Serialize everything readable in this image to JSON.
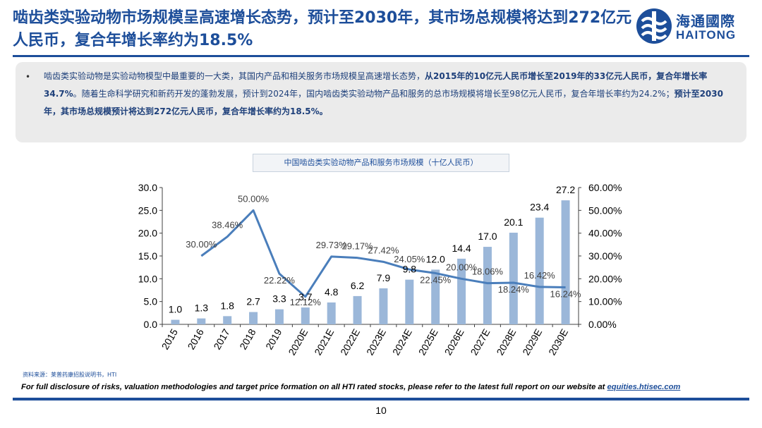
{
  "header": {
    "title": "啮齿类实验动物市场规模呈高速增长态势，预计至2030年，其市场总规模将达到272亿元人民币，复合年增长率约为18.5%",
    "logo_cn": "海通國際",
    "logo_en": "HAITONG"
  },
  "summary": {
    "bullet": "•",
    "seg1": "啮齿类实验动物是实验动物模型中最重要的一大类，其国内产品和相关服务市场规模呈高速增长态势，",
    "seg2": "从2015年的10亿元人民币增长至2019年的33亿元人民币，复合年增长率34.7%",
    "seg3": "。随着生命科学研究和新药开发的蓬勃发展，预计到2024年，国内啮齿类实验动物产品和服务的总市场规模将增长至98亿元人民币，复合年增长率约为24.2%；",
    "seg4": "预计至2030年，其市场总规模预计将达到272亿元人民币，复合年增长率约为18.5%。"
  },
  "chart_caption": "中国啮齿类实验动物产品和服务市场规模（十亿人民币）",
  "chart_data": {
    "type": "bar",
    "categories": [
      "2015",
      "2016",
      "2017",
      "2018",
      "2019",
      "2020E",
      "2021E",
      "2022E",
      "2023E",
      "2024E",
      "2025E",
      "2026E",
      "2027E",
      "2028E",
      "2029E",
      "2030E"
    ],
    "series": [
      {
        "type": "bar",
        "values": [
          1.0,
          1.3,
          1.8,
          2.7,
          3.3,
          3.7,
          4.8,
          6.2,
          7.9,
          9.8,
          12.0,
          14.4,
          17.0,
          20.1,
          23.4,
          27.2
        ],
        "labels": [
          "1.0",
          "1.3",
          "1.8",
          "2.7",
          "3.3",
          "3.7",
          "4.8",
          "6.2",
          "7.9",
          "9.8",
          "12.0",
          "14.4",
          "17.0",
          "20.1",
          "23.4",
          "27.2"
        ],
        "color": "#9bb7d9"
      },
      {
        "type": "line",
        "axis": "right",
        "values": [
          null,
          30.0,
          38.46,
          50.0,
          22.22,
          12.12,
          29.73,
          29.17,
          27.42,
          24.05,
          22.45,
          20.0,
          18.06,
          18.24,
          16.42,
          16.24
        ],
        "labels": [
          "",
          "30.00%",
          "38.46%",
          "50.00%",
          "22.22%",
          "12.12%",
          "29.73%",
          "29.17%",
          "27.42%",
          "24.05%",
          "22.45%",
          "20.00%",
          "18.06%",
          "18.24%",
          "16.42%",
          "16.24%"
        ],
        "color": "#4a7ebb"
      }
    ],
    "ylim": [
      0,
      30
    ],
    "yticks": [
      "0.0",
      "5.0",
      "10.0",
      "15.0",
      "20.0",
      "25.0",
      "30.0"
    ],
    "y2lim": [
      0,
      60
    ],
    "y2ticks": [
      "0.00%",
      "10.00%",
      "20.00%",
      "30.00%",
      "40.00%",
      "50.00%",
      "60.00%"
    ],
    "grid": false,
    "legend": "none"
  },
  "footer": {
    "source": "资料来源：莱普药康招股说明书，HTI",
    "disclosure_text": "For full disclosure of risks, valuation methodologies and target price formation on all HTI rated stocks, please refer to the latest full report on our website at ",
    "disclosure_link": "equities.htisec.com",
    "page_number": "10"
  },
  "colors": {
    "brand": "#1d4e9a",
    "bar": "#9bb7d9",
    "line": "#4a7ebb"
  }
}
